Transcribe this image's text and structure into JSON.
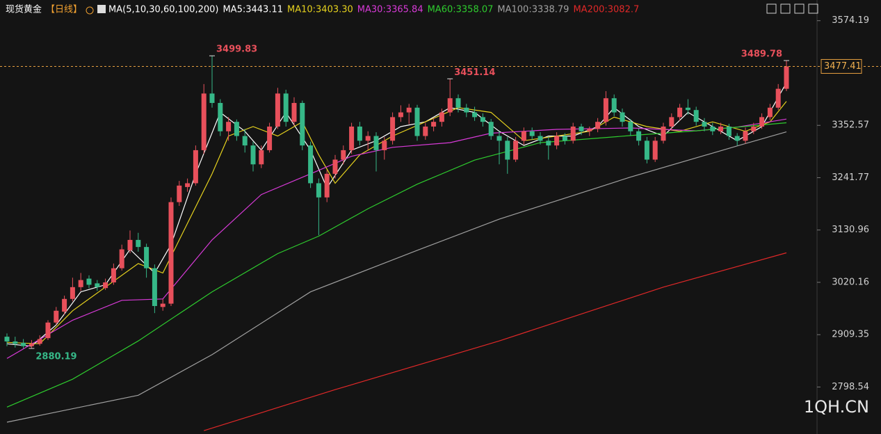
{
  "chart_data": {
    "type": "candlestick",
    "title": "现货黄金",
    "period": "【日线】",
    "indicator": "MA(5,10,30,60,100,200)",
    "watermark": "1QH.CN",
    "up_color": "#e8505b",
    "down_color": "#36b888",
    "ylim": [
      2699,
      3618
    ],
    "yticks": [
      2798.54,
      2909.35,
      3020.16,
      3130.96,
      3241.77,
      3352.57,
      3574.19
    ],
    "last": 3477.41,
    "values": [
      [
        2905,
        2912,
        2885,
        2895
      ],
      [
        2895,
        2905,
        2882,
        2890
      ],
      [
        2892,
        2900,
        2880,
        2885
      ],
      [
        2885,
        2898,
        2880.19,
        2890
      ],
      [
        2890,
        2908,
        2886,
        2900
      ],
      [
        2902,
        2940,
        2898,
        2935
      ],
      [
        2935,
        2968,
        2930,
        2960
      ],
      [
        2958,
        2992,
        2952,
        2985
      ],
      [
        2985,
        3030,
        2980,
        3010
      ],
      [
        3010,
        3040,
        3002,
        3025
      ],
      [
        3028,
        3035,
        3008,
        3015
      ],
      [
        3018,
        3025,
        3002,
        3010
      ],
      [
        3008,
        3028,
        3004,
        3020
      ],
      [
        3020,
        3060,
        3015,
        3050
      ],
      [
        3050,
        3100,
        3045,
        3090
      ],
      [
        3088,
        3130,
        3082,
        3110
      ],
      [
        3110,
        3125,
        3085,
        3095
      ],
      [
        3095,
        3102,
        3030,
        3050
      ],
      [
        3050,
        3058,
        2955,
        2970
      ],
      [
        2968,
        2985,
        2960,
        2975
      ],
      [
        2975,
        3200,
        2970,
        3190
      ],
      [
        3190,
        3235,
        3182,
        3225
      ],
      [
        3222,
        3240,
        3212,
        3230
      ],
      [
        3230,
        3310,
        3225,
        3300
      ],
      [
        3300,
        3440,
        3292,
        3420
      ],
      [
        3420,
        3499.83,
        3390,
        3400
      ],
      [
        3400,
        3408,
        3330,
        3340
      ],
      [
        3340,
        3370,
        3320,
        3360
      ],
      [
        3360,
        3365,
        3320,
        3330
      ],
      [
        3330,
        3345,
        3295,
        3310
      ],
      [
        3310,
        3318,
        3255,
        3270
      ],
      [
        3270,
        3310,
        3262,
        3300
      ],
      [
        3300,
        3358,
        3295,
        3350
      ],
      [
        3350,
        3432,
        3345,
        3420
      ],
      [
        3420,
        3428,
        3350,
        3360
      ],
      [
        3360,
        3412,
        3352,
        3400
      ],
      [
        3400,
        3405,
        3300,
        3310
      ],
      [
        3310,
        3318,
        3220,
        3230
      ],
      [
        3230,
        3240,
        3120,
        3200
      ],
      [
        3200,
        3258,
        3190,
        3250
      ],
      [
        3250,
        3290,
        3240,
        3280
      ],
      [
        3280,
        3310,
        3270,
        3300
      ],
      [
        3300,
        3358,
        3292,
        3350
      ],
      [
        3350,
        3360,
        3310,
        3320
      ],
      [
        3320,
        3340,
        3300,
        3330
      ],
      [
        3330,
        3338,
        3255,
        3300
      ],
      [
        3300,
        3328,
        3280,
        3320
      ],
      [
        3320,
        3380,
        3312,
        3370
      ],
      [
        3370,
        3395,
        3360,
        3380
      ],
      [
        3380,
        3398,
        3355,
        3390
      ],
      [
        3390,
        3396,
        3320,
        3330
      ],
      [
        3330,
        3358,
        3322,
        3350
      ],
      [
        3350,
        3368,
        3340,
        3360
      ],
      [
        3360,
        3388,
        3350,
        3380
      ],
      [
        3380,
        3451.14,
        3372,
        3410
      ],
      [
        3410,
        3418,
        3380,
        3390
      ],
      [
        3390,
        3398,
        3370,
        3380
      ],
      [
        3380,
        3392,
        3362,
        3370
      ],
      [
        3370,
        3378,
        3350,
        3360
      ],
      [
        3360,
        3366,
        3322,
        3330
      ],
      [
        3330,
        3340,
        3270,
        3320
      ],
      [
        3320,
        3328,
        3250,
        3280
      ],
      [
        3280,
        3328,
        3275,
        3320
      ],
      [
        3320,
        3348,
        3312,
        3340
      ],
      [
        3340,
        3348,
        3322,
        3330
      ],
      [
        3330,
        3338,
        3312,
        3320
      ],
      [
        3320,
        3328,
        3280,
        3310
      ],
      [
        3310,
        3338,
        3302,
        3330
      ],
      [
        3330,
        3336,
        3312,
        3320
      ],
      [
        3320,
        3358,
        3314,
        3350
      ],
      [
        3350,
        3356,
        3332,
        3340
      ],
      [
        3340,
        3350,
        3330,
        3345
      ],
      [
        3345,
        3368,
        3338,
        3360
      ],
      [
        3360,
        3425,
        3352,
        3410
      ],
      [
        3410,
        3418,
        3372,
        3380
      ],
      [
        3380,
        3388,
        3350,
        3360
      ],
      [
        3360,
        3366,
        3330,
        3340
      ],
      [
        3340,
        3346,
        3310,
        3320
      ],
      [
        3320,
        3328,
        3272,
        3280
      ],
      [
        3280,
        3328,
        3275,
        3320
      ],
      [
        3320,
        3358,
        3314,
        3350
      ],
      [
        3350,
        3378,
        3342,
        3370
      ],
      [
        3370,
        3398,
        3362,
        3390
      ],
      [
        3390,
        3408,
        3375,
        3385
      ],
      [
        3385,
        3392,
        3352,
        3360
      ],
      [
        3360,
        3368,
        3340,
        3350
      ],
      [
        3350,
        3358,
        3332,
        3340
      ],
      [
        3340,
        3358,
        3334,
        3350
      ],
      [
        3350,
        3356,
        3322,
        3330
      ],
      [
        3330,
        3336,
        3310,
        3320
      ],
      [
        3320,
        3348,
        3314,
        3340
      ],
      [
        3340,
        3358,
        3334,
        3350
      ],
      [
        3350,
        3378,
        3345,
        3370
      ],
      [
        3370,
        3398,
        3364,
        3390
      ],
      [
        3390,
        3440,
        3385,
        3430
      ],
      [
        3430,
        3489.78,
        3425,
        3477.41
      ]
    ],
    "annotations": [
      {
        "index": 25,
        "value": 3499.83,
        "color": "#e8505b"
      },
      {
        "index": 54,
        "value": 3451.14,
        "color": "#e8505b"
      },
      {
        "index": 95,
        "value": 3489.78,
        "color": "#e8505b"
      },
      {
        "index": 3,
        "value": 2880.19,
        "color": "#36b888"
      }
    ],
    "series": [
      {
        "name": "MA5:3443.11",
        "color": "#ffffff",
        "x": [
          0,
          3,
          6,
          9,
          12,
          15,
          18,
          20,
          23,
          26,
          29,
          31,
          34,
          37,
          39,
          42,
          45,
          48,
          51,
          54,
          57,
          60,
          63,
          66,
          69,
          72,
          74,
          77,
          80,
          83,
          86,
          89,
          92,
          95
        ],
        "values": [
          2890,
          2885,
          2930,
          3000,
          3015,
          3090,
          3040,
          3100,
          3250,
          3380,
          3340,
          3300,
          3380,
          3300,
          3220,
          3300,
          3320,
          3350,
          3360,
          3390,
          3380,
          3340,
          3310,
          3330,
          3330,
          3350,
          3390,
          3350,
          3330,
          3380,
          3350,
          3320,
          3350,
          3443.11
        ]
      },
      {
        "name": "MA10:3403.30",
        "color": "#e6d21e",
        "x": [
          0,
          4,
          8,
          12,
          16,
          19,
          21,
          25,
          27,
          30,
          33,
          36,
          38,
          40,
          43,
          47,
          51,
          55,
          59,
          63,
          67,
          71,
          74,
          78,
          82,
          86,
          90,
          93,
          95
        ],
        "values": [
          2893,
          2890,
          2960,
          3010,
          3060,
          3040,
          3110,
          3250,
          3330,
          3350,
          3330,
          3360,
          3290,
          3230,
          3290,
          3330,
          3360,
          3390,
          3380,
          3320,
          3330,
          3340,
          3370,
          3350,
          3340,
          3360,
          3340,
          3360,
          3403.3
        ]
      },
      {
        "name": "MA30:3365.84",
        "color": "#d83ad8",
        "x": [
          0,
          8,
          14,
          19,
          25,
          31,
          37,
          42,
          47,
          54,
          59,
          67,
          76,
          84,
          89,
          95
        ],
        "values": [
          2859,
          2940,
          2982,
          2985,
          3110,
          3206,
          3250,
          3287,
          3306,
          3316,
          3336,
          3344,
          3347,
          3341,
          3349,
          3365.84
        ]
      },
      {
        "name": "MA60:3358.07",
        "color": "#2ecc2e",
        "x": [
          0,
          8,
          16,
          25,
          33,
          38,
          44,
          50,
          57,
          65,
          76,
          84,
          95
        ],
        "values": [
          2756,
          2815,
          2896,
          3000,
          3081,
          3118,
          3176,
          3228,
          3279,
          3316,
          3331,
          3341,
          3358.07
        ]
      },
      {
        "name": "MA100:3338.79",
        "color": "#a0a0a0",
        "x": [
          0,
          16,
          25,
          37,
          50,
          60,
          76,
          89,
          95
        ],
        "values": [
          2724,
          2781,
          2867,
          3000,
          3088,
          3154,
          3243,
          3309,
          3338.79
        ]
      },
      {
        "name": "MA200:3082.7",
        "color": "#e02828",
        "x": [
          24,
          40,
          60,
          80,
          95
        ],
        "values": [
          2706,
          2793,
          2896,
          3010,
          3082.7
        ]
      }
    ]
  }
}
